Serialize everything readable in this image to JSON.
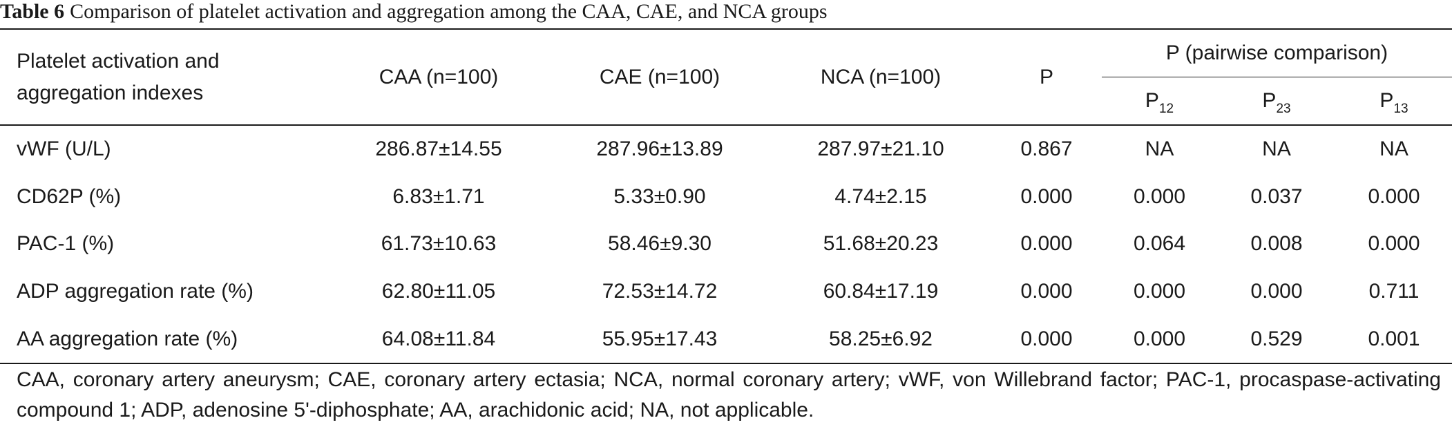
{
  "caption": {
    "label": "Table 6",
    "text": "Comparison of platelet activation and aggregation among the CAA, CAE, and NCA groups"
  },
  "table": {
    "headers": {
      "row_label": "Platelet activation and aggregation indexes",
      "groups": [
        "CAA (n=100)",
        "CAE (n=100)",
        "NCA (n=100)"
      ],
      "p": "P",
      "pairwise_title": "P (pairwise comparison)",
      "pairwise": [
        {
          "base": "P",
          "sub": "12"
        },
        {
          "base": "P",
          "sub": "23"
        },
        {
          "base": "P",
          "sub": "13"
        }
      ]
    },
    "rows": [
      {
        "label": "vWF (U/L)",
        "caa": "286.87±14.55",
        "cae": "287.96±13.89",
        "nca": "287.97±21.10",
        "p": "0.867",
        "p12": "NA",
        "p23": "NA",
        "p13": "NA"
      },
      {
        "label": "CD62P (%)",
        "caa": "6.83±1.71",
        "cae": "5.33±0.90",
        "nca": "4.74±2.15",
        "p": "0.000",
        "p12": "0.000",
        "p23": "0.037",
        "p13": "0.000"
      },
      {
        "label": "PAC-1 (%)",
        "caa": "61.73±10.63",
        "cae": "58.46±9.30",
        "nca": "51.68±20.23",
        "p": "0.000",
        "p12": "0.064",
        "p23": "0.008",
        "p13": "0.000"
      },
      {
        "label": "ADP aggregation rate (%)",
        "caa": "62.80±11.05",
        "cae": "72.53±14.72",
        "nca": "60.84±17.19",
        "p": "0.000",
        "p12": "0.000",
        "p23": "0.000",
        "p13": "0.711"
      },
      {
        "label": "AA aggregation rate (%)",
        "caa": "64.08±11.84",
        "cae": "55.95±17.43",
        "nca": "58.25±6.92",
        "p": "0.000",
        "p12": "0.000",
        "p23": "0.529",
        "p13": "0.001"
      }
    ]
  },
  "footnote": "CAA, coronary artery aneurysm; CAE, coronary artery ectasia; NCA, normal coronary artery; vWF, von Willebrand factor; PAC-1, procaspase-activating compound 1; ADP, adenosine 5'-diphosphate; AA, arachidonic acid; NA, not applicable."
}
